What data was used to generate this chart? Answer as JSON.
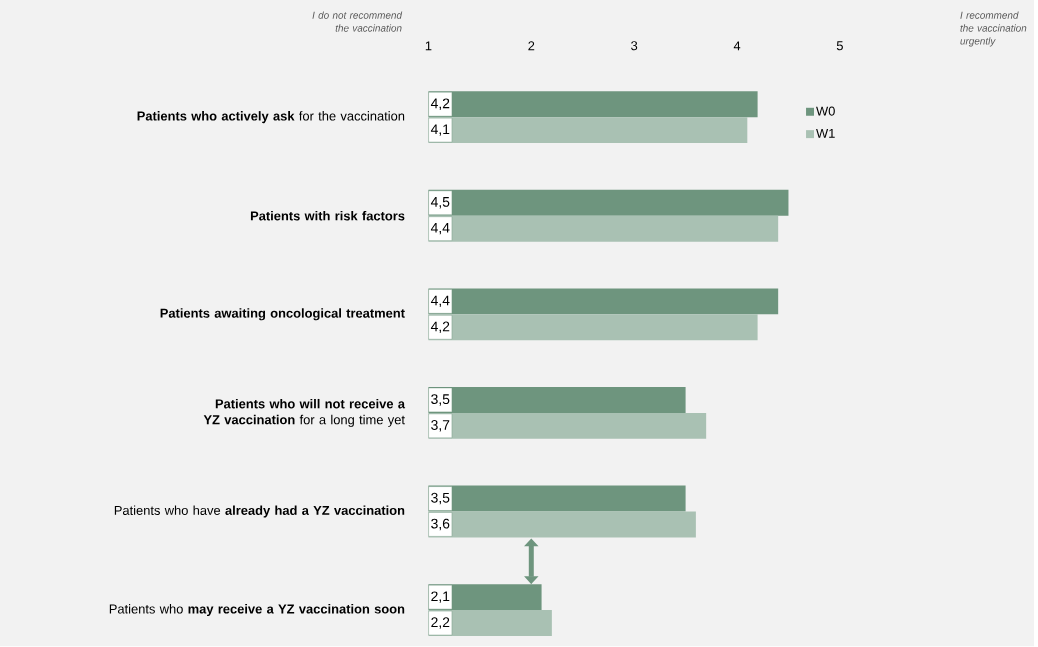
{
  "chart_data": {
    "type": "bar",
    "orientation": "horizontal",
    "categories": [
      "**Patients who actively ask** for the vaccination",
      "**Patients with risk factors**",
      "**Patients awaiting oncological treatment**",
      "**Patients who will not receive a YZ vaccination** for a long time yet",
      "Patients who have **already had a YZ vaccination**",
      "Patients who **may receive a YZ vaccination soon**"
    ],
    "series": [
      {
        "name": "W0",
        "color": "#6e957e",
        "values": [
          4.2,
          4.5,
          4.4,
          3.5,
          3.5,
          2.1
        ],
        "value_labels": [
          "4,2",
          "4,5",
          "4,4",
          "3,5",
          "3,5",
          "2,1"
        ]
      },
      {
        "name": "W1",
        "color": "#a9c1b3",
        "values": [
          4.1,
          4.4,
          4.2,
          3.7,
          3.6,
          2.2
        ],
        "value_labels": [
          "4,1",
          "4,4",
          "4,2",
          "3,7",
          "3,6",
          "2,2"
        ]
      }
    ],
    "xlim": [
      1,
      5
    ],
    "xticks": [
      1,
      2,
      3,
      4,
      5
    ],
    "grid": false,
    "legend": "top right",
    "annotations": [
      "I do not recommend the vaccination",
      "I recommend the vaccination urgently"
    ]
  }
}
